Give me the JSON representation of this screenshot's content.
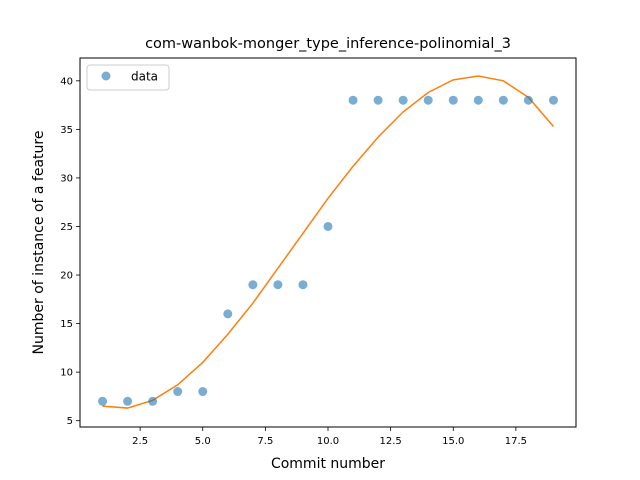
{
  "chart_data": {
    "type": "scatter",
    "title": "com-wanbok-monger_type_inference-polinomial_3",
    "xlabel": "Commit number",
    "ylabel": "Number of instance of a feature",
    "xlim": [
      0.1,
      19.9
    ],
    "ylim": [
      4.35,
      42.35
    ],
    "xticks": [
      2.5,
      5.0,
      7.5,
      10.0,
      12.5,
      15.0,
      17.5
    ],
    "xtick_labels": [
      "2.5",
      "5.0",
      "7.5",
      "10.0",
      "12.5",
      "15.0",
      "17.5"
    ],
    "yticks": [
      5,
      10,
      15,
      20,
      25,
      30,
      35,
      40
    ],
    "ytick_labels": [
      "5",
      "10",
      "15",
      "20",
      "25",
      "30",
      "35",
      "40"
    ],
    "grid": false,
    "legend": {
      "position": "top-left",
      "entries": [
        "data"
      ]
    },
    "series": [
      {
        "name": "data",
        "kind": "scatter",
        "color": "#1f77b4",
        "x": [
          1,
          2,
          3,
          4,
          5,
          6,
          7,
          8,
          9,
          10,
          11,
          12,
          13,
          14,
          15,
          16,
          17,
          18,
          19
        ],
        "y": [
          7,
          7,
          7,
          8,
          8,
          16,
          19,
          19,
          19,
          25,
          38,
          38,
          38,
          38,
          38,
          38,
          38,
          38,
          38
        ]
      },
      {
        "kind": "line",
        "color": "#ff7f0e",
        "x": [
          1,
          2,
          3,
          4,
          5,
          6,
          7,
          8,
          9,
          10,
          11,
          12,
          13,
          14,
          15,
          16,
          17,
          18,
          19
        ],
        "y": [
          6.5,
          6.3,
          7.1,
          8.7,
          11.0,
          13.9,
          17.1,
          20.7,
          24.3,
          27.9,
          31.2,
          34.2,
          36.8,
          38.8,
          40.1,
          40.5,
          40.0,
          38.3,
          35.3
        ]
      }
    ]
  }
}
